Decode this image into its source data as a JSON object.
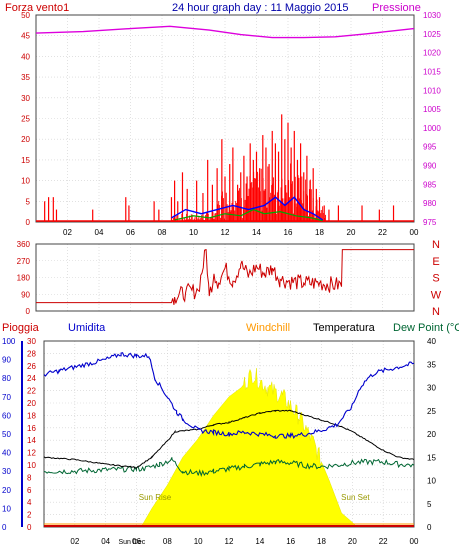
{
  "header": {
    "left_label": "Forza vento1",
    "title": "24 hour graph day : 11 Maggio 2015",
    "right_label": "Pressione"
  },
  "bottom_header": {
    "pioggia": "Pioggia",
    "umidita": "Umidita",
    "windchill": "Windchill",
    "temperatura": "Temperatura",
    "dewpoint": "Dew Point (°C"
  },
  "colors": {
    "frame": "#444444",
    "grid": "#cfcfcf",
    "wind": "#ff0000",
    "gust": "#ff0000",
    "wind_avg": "#0000ff",
    "wind_green": "#00aa00",
    "pressure": "#dd00dd",
    "direction": "#cc0000",
    "humidity": "#0000cc",
    "temperature": "#000000",
    "dewpoint": "#006633",
    "windchill": "#ff6600",
    "rain": "#cc0000",
    "sun": "#ffff00",
    "sun_text": "#999900",
    "axis_left_wind": "#cc0000",
    "axis_right_pressure": "#cc00cc",
    "axis_rain": "#cc0000",
    "axis_humidity": "#0000cc"
  },
  "chart_data": [
    {
      "type": "line",
      "name": "wind_pressure",
      "x_ticks": [
        "02",
        "04",
        "06",
        "08",
        "10",
        "12",
        "14",
        "16",
        "18",
        "20",
        "22",
        "00"
      ],
      "y_left": {
        "ticks": [
          0,
          5,
          10,
          15,
          20,
          25,
          30,
          35,
          40,
          45,
          50
        ],
        "ylim": [
          0,
          50
        ]
      },
      "y_right": {
        "ticks": [
          975,
          980,
          985,
          990,
          995,
          1000,
          1005,
          1010,
          1015,
          1020,
          1025,
          1030
        ],
        "ylim": [
          975,
          1030
        ]
      },
      "pressure": {
        "x": [
          0,
          3,
          6,
          8.5,
          11,
          13,
          15,
          17,
          19,
          21,
          24
        ],
        "y": [
          1025.2,
          1025.6,
          1026.4,
          1027.0,
          1026.0,
          1024.8,
          1024.0,
          1024.0,
          1024.2,
          1025.0,
          1026.4
        ]
      },
      "gust_spikes": [
        [
          0.55,
          5
        ],
        [
          0.8,
          6
        ],
        [
          1.1,
          6
        ],
        [
          1.3,
          3
        ],
        [
          3.6,
          3
        ],
        [
          5.7,
          6
        ],
        [
          5.9,
          4
        ],
        [
          7.5,
          5
        ],
        [
          7.8,
          3
        ],
        [
          8.6,
          6
        ],
        [
          8.8,
          10
        ],
        [
          9.0,
          5
        ],
        [
          9.3,
          12
        ],
        [
          9.6,
          8
        ],
        [
          10.2,
          10
        ],
        [
          10.6,
          7
        ],
        [
          10.9,
          15
        ],
        [
          11.2,
          9
        ],
        [
          11.5,
          13
        ],
        [
          11.8,
          20
        ],
        [
          12.0,
          11
        ],
        [
          12.3,
          14
        ],
        [
          12.5,
          18
        ],
        [
          12.8,
          9
        ],
        [
          13.0,
          12
        ],
        [
          13.2,
          16
        ],
        [
          13.4,
          11
        ],
        [
          13.6,
          19
        ],
        [
          13.8,
          15
        ],
        [
          14.0,
          17
        ],
        [
          14.2,
          13
        ],
        [
          14.4,
          21
        ],
        [
          14.6,
          18
        ],
        [
          14.8,
          14
        ],
        [
          15.0,
          22
        ],
        [
          15.2,
          19
        ],
        [
          15.4,
          17
        ],
        [
          15.6,
          26
        ],
        [
          15.8,
          20
        ],
        [
          16.0,
          24
        ],
        [
          16.2,
          18
        ],
        [
          16.4,
          22
        ],
        [
          16.6,
          15
        ],
        [
          16.8,
          19
        ],
        [
          17.0,
          12
        ],
        [
          17.2,
          16
        ],
        [
          17.4,
          10
        ],
        [
          17.6,
          13
        ],
        [
          17.8,
          8
        ],
        [
          18.0,
          6
        ],
        [
          18.3,
          4
        ],
        [
          18.6,
          3
        ],
        [
          19.2,
          4
        ],
        [
          20.7,
          4
        ],
        [
          21.8,
          3
        ],
        [
          22.7,
          4
        ]
      ],
      "wind_avg": {
        "x": [
          8.6,
          9.5,
          10.5,
          11.5,
          12.5,
          13.5,
          14.5,
          15.2,
          15.8,
          16.4,
          17.0,
          17.6,
          18.2
        ],
        "y": [
          1,
          3,
          2,
          3,
          4,
          3,
          4,
          6,
          4,
          6,
          3,
          2,
          0.5
        ]
      },
      "wind_green": {
        "x": [
          8.8,
          10,
          11,
          12,
          13,
          13.8,
          14.5,
          15.5,
          16.5,
          17.5,
          18.2
        ],
        "y": [
          0.5,
          1.5,
          1,
          2,
          1.5,
          3,
          2,
          2.5,
          1.5,
          1,
          0.3
        ]
      }
    },
    {
      "type": "line",
      "name": "wind_direction",
      "y_ticks": [
        0,
        90,
        180,
        270,
        360
      ],
      "y_labels_right": [
        "N",
        "W",
        "S",
        "E",
        "N"
      ],
      "ylim": [
        0,
        360
      ],
      "series": {
        "x": [
          0,
          8.6,
          8.8,
          9.5,
          10.3,
          10.8,
          11.0,
          11.3,
          11.6,
          12.0,
          12.5,
          13.0,
          13.5,
          14.0,
          14.5,
          15.0,
          15.5,
          16.0,
          17.0,
          18.0,
          19.0,
          19.4,
          19.45,
          20.6,
          20.65,
          24
        ],
        "y": [
          45,
          45,
          75,
          100,
          110,
          330,
          80,
          200,
          150,
          230,
          160,
          250,
          190,
          240,
          200,
          230,
          170,
          160,
          150,
          150,
          140,
          140,
          330,
          330,
          330,
          330
        ]
      }
    },
    {
      "type": "line",
      "name": "temp_humidity",
      "y_humidity": {
        "ticks": [
          0,
          10,
          20,
          30,
          40,
          50,
          60,
          70,
          80,
          90,
          100
        ],
        "ylim": [
          0,
          100
        ]
      },
      "y_rain": {
        "ticks": [
          0,
          2,
          4,
          6,
          8,
          10,
          12,
          14,
          16,
          18,
          20,
          22,
          24,
          26,
          28,
          30
        ],
        "ylim": [
          0,
          30
        ]
      },
      "y_temp": {
        "ticks": [
          0,
          5,
          10,
          15,
          20,
          25,
          30,
          35,
          40
        ],
        "ylim": [
          0,
          40
        ]
      },
      "x_extra_labels": [
        "Sun Rise",
        "Sun Set",
        "Sun Dec"
      ],
      "humidity": {
        "x": [
          0,
          1,
          2,
          3,
          4,
          5,
          6,
          6.8,
          7.2,
          8,
          8.6,
          9,
          10,
          11,
          12,
          13,
          14,
          15,
          16,
          17,
          18,
          19,
          20,
          20.5,
          21,
          21.5,
          22,
          23,
          24
        ],
        "y": [
          82,
          84,
          86,
          88,
          90,
          93,
          92,
          92,
          80,
          70,
          62,
          58,
          52,
          51,
          50,
          51,
          50,
          49,
          49,
          50,
          52,
          55,
          65,
          75,
          80,
          83,
          84,
          86,
          88
        ]
      },
      "temperature": {
        "x": [
          0,
          2,
          4,
          6,
          7.0,
          8.0,
          8.5,
          10,
          11,
          12,
          13,
          14,
          15,
          16,
          17,
          18,
          19,
          20,
          21,
          22,
          23,
          24
        ],
        "y": [
          15.0,
          14.5,
          13.5,
          12.8,
          15.0,
          18.5,
          20.5,
          21.0,
          22.0,
          22.5,
          23.5,
          24.5,
          25.0,
          25.0,
          24.0,
          23.0,
          22.0,
          20.5,
          18.5,
          16.5,
          15.0,
          14.5
        ]
      },
      "dewpoint": {
        "x": [
          0,
          2,
          4,
          6,
          6.5,
          7.5,
          8.3,
          9,
          10,
          11,
          12,
          13,
          14,
          15,
          16,
          17,
          18,
          19,
          20,
          21,
          22,
          23,
          24
        ],
        "y": [
          12.0,
          12.0,
          12.3,
          12.5,
          12.5,
          13.5,
          14.5,
          12.0,
          11.5,
          12.0,
          12.5,
          13.0,
          13.5,
          14.0,
          13.8,
          13.2,
          13.0,
          13.3,
          13.8,
          14.0,
          14.0,
          13.5,
          13.3
        ]
      },
      "sun": {
        "x": [
          6.3,
          7.0,
          8.0,
          9.0,
          10.0,
          11.0,
          12.0,
          12.8,
          13.5,
          14.5,
          15.5,
          16.5,
          17.5,
          18.5,
          19.3,
          20.0,
          20.3
        ],
        "y": [
          0,
          4,
          9,
          15,
          19,
          24,
          28,
          30,
          33,
          30,
          28,
          24,
          18,
          10,
          3,
          1,
          0
        ]
      },
      "rain": {
        "x": [
          0,
          24
        ],
        "y": [
          0,
          0
        ]
      }
    }
  ]
}
